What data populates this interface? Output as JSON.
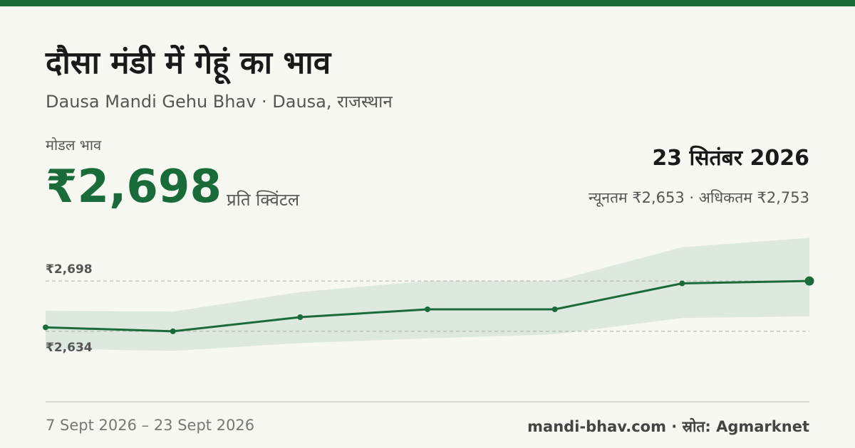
{
  "header": {
    "title": "दौसा मंडी में गेहूं का भाव",
    "subtitle": "Dausa Mandi Gehu Bhav · Dausa, राजस्थान"
  },
  "price": {
    "label": "मोडल भाव",
    "value": "₹2,698",
    "unit": "प्रति क्विंटल",
    "date": "23 सितंबर 2026",
    "range": "न्यूनतम ₹2,653 · अधिकतम ₹2,753"
  },
  "chart_data": {
    "type": "line",
    "categories": [
      null,
      null,
      null,
      null,
      null,
      null,
      null
    ],
    "values": [
      2639,
      2634,
      2652,
      2662,
      2662,
      2695,
      2698
    ],
    "band_low": [
      2612,
      2609,
      2619,
      2625,
      2630,
      2651,
      2653
    ],
    "band_high": [
      2660,
      2659,
      2684,
      2698,
      2698,
      2741,
      2753
    ],
    "color": "#1a6b3a",
    "band_color": "#dde8df",
    "ylim": [
      2585,
      2757
    ],
    "reference_lines": [
      {
        "value": 2698,
        "label": "₹2,698"
      },
      {
        "value": 2634,
        "label": "₹2,634"
      }
    ]
  },
  "footer": {
    "date_range": "7 Sept 2026 – 23 Sept 2026",
    "source": "mandi-bhav.com · स्रोत: Agmarknet"
  }
}
